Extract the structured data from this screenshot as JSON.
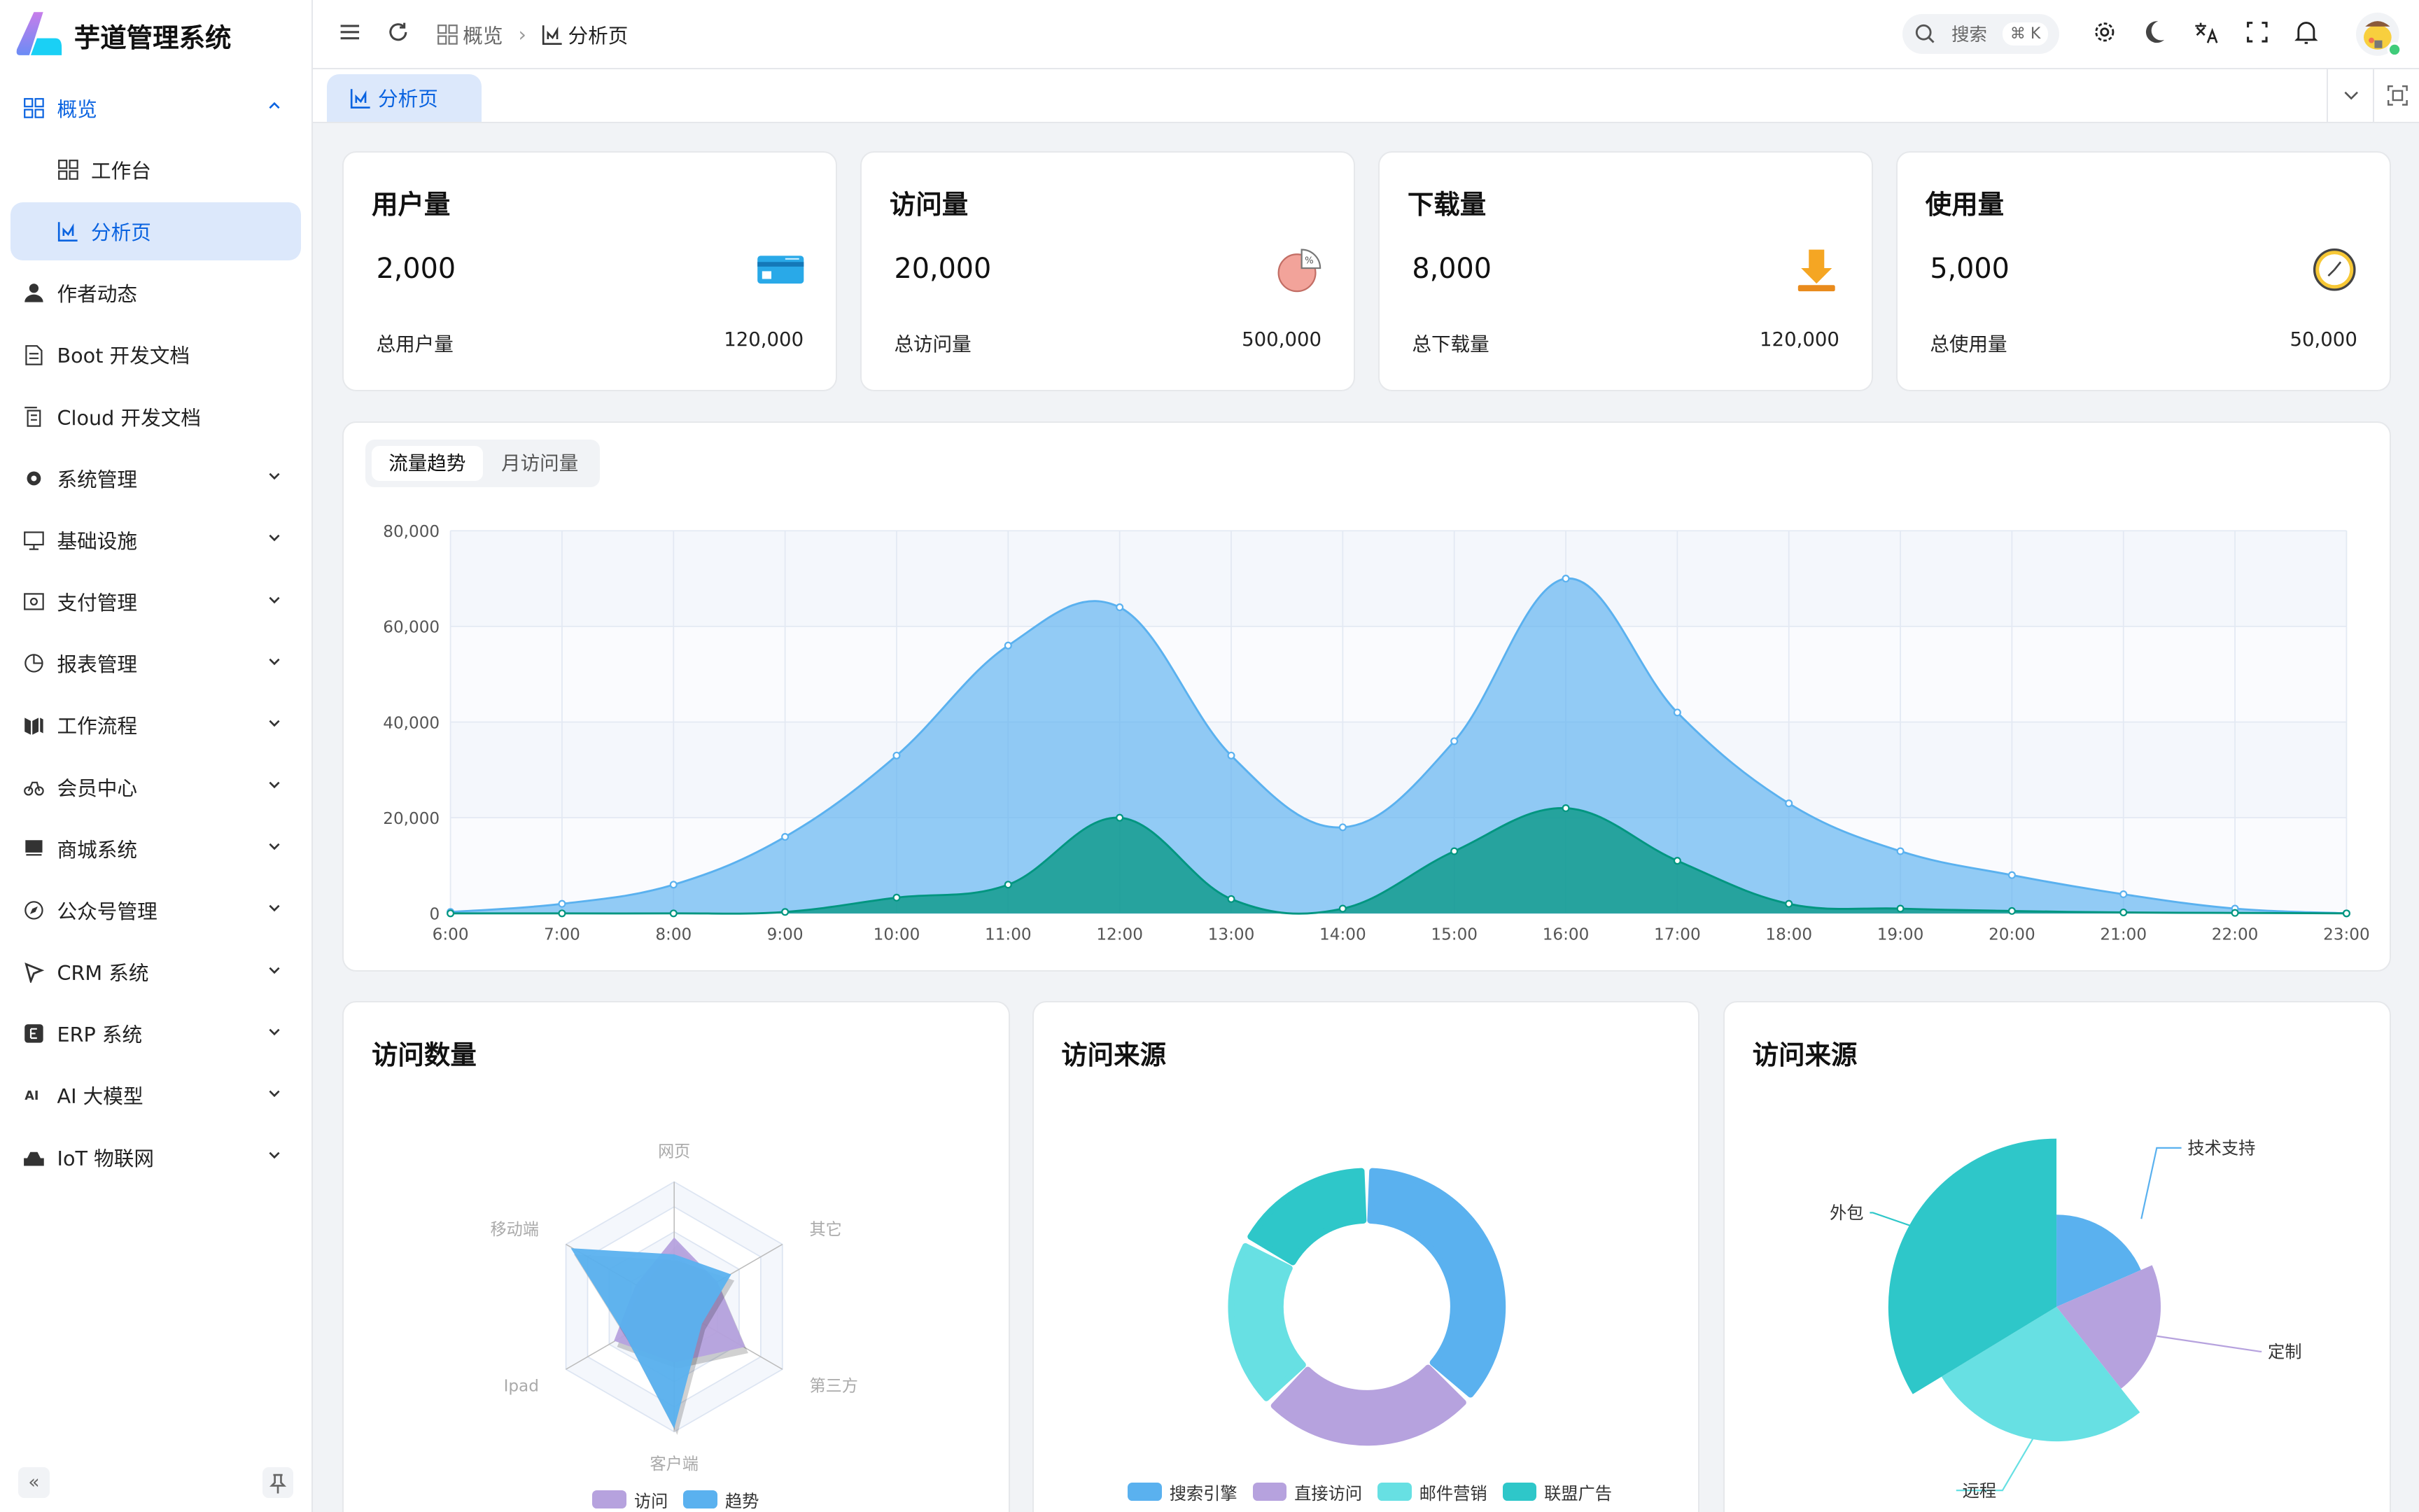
{
  "app": {
    "title": "芋道管理系统"
  },
  "sidebar": {
    "items": [
      {
        "label": "概览",
        "icon": "grid-icon",
        "state": "open"
      },
      {
        "label": "工作台",
        "icon": "grid-icon",
        "sub": true
      },
      {
        "label": "分析页",
        "icon": "chart-line-icon",
        "sub": true,
        "active": true
      },
      {
        "label": "作者动态",
        "icon": "user-icon"
      },
      {
        "label": "Boot 开发文档",
        "icon": "document-icon"
      },
      {
        "label": "Cloud 开发文档",
        "icon": "documents-icon"
      },
      {
        "label": "系统管理",
        "icon": "gear-icon",
        "expandable": true
      },
      {
        "label": "基础设施",
        "icon": "monitor-icon",
        "expandable": true
      },
      {
        "label": "支付管理",
        "icon": "payment-icon",
        "expandable": true
      },
      {
        "label": "报表管理",
        "icon": "pie-icon",
        "expandable": true
      },
      {
        "label": "工作流程",
        "icon": "workflow-icon",
        "expandable": true
      },
      {
        "label": "会员中心",
        "icon": "bicycle-icon",
        "expandable": true
      },
      {
        "label": "商城系统",
        "icon": "shop-icon",
        "expandable": true
      },
      {
        "label": "公众号管理",
        "icon": "compass-icon",
        "expandable": true
      },
      {
        "label": "CRM 系统",
        "icon": "crm-icon",
        "expandable": true
      },
      {
        "label": "ERP 系统",
        "icon": "erp-icon",
        "expandable": true
      },
      {
        "label": "AI 大模型",
        "icon": "ai-icon",
        "expandable": true
      },
      {
        "label": "IoT 物联网",
        "icon": "iot-icon",
        "expandable": true
      }
    ]
  },
  "header": {
    "breadcrumb": [
      {
        "label": "概览",
        "icon": "grid-icon"
      },
      {
        "label": "分析页",
        "icon": "chart-line-icon"
      }
    ],
    "search": {
      "placeholder": "搜索",
      "shortcut": "⌘ K"
    }
  },
  "tabs": [
    {
      "label": "分析页",
      "active": true
    }
  ],
  "stats": [
    {
      "title": "用户量",
      "value": "2,000",
      "footer_label": "总用户量",
      "footer_value": "120,000",
      "icon": "credit-card-icon"
    },
    {
      "title": "访问量",
      "value": "20,000",
      "footer_label": "总访问量",
      "footer_value": "500,000",
      "icon": "pie-chart-icon"
    },
    {
      "title": "下载量",
      "value": "8,000",
      "footer_label": "总下载量",
      "footer_value": "120,000",
      "icon": "download-icon"
    },
    {
      "title": "使用量",
      "value": "5,000",
      "footer_label": "总使用量",
      "footer_value": "50,000",
      "icon": "clock-icon"
    }
  ],
  "trend": {
    "tabs": [
      {
        "label": "流量趋势",
        "active": true
      },
      {
        "label": "月访问量"
      }
    ],
    "chart_data": {
      "type": "area",
      "x": [
        "6:00",
        "7:00",
        "8:00",
        "9:00",
        "10:00",
        "11:00",
        "12:00",
        "13:00",
        "14:00",
        "15:00",
        "16:00",
        "17:00",
        "18:00",
        "19:00",
        "20:00",
        "21:00",
        "22:00",
        "23:00"
      ],
      "ylim": [
        0,
        80000
      ],
      "yticks": [
        "0",
        "20,000",
        "40,000",
        "60,000",
        "80,000"
      ],
      "grid": true,
      "series": [
        {
          "values": [
            300,
            2000,
            6000,
            16000,
            33000,
            56000,
            64000,
            33000,
            18000,
            36000,
            70000,
            42000,
            23000,
            13000,
            8000,
            4000,
            1000,
            0
          ],
          "color": "#5ab1ef"
        },
        {
          "values": [
            0,
            0,
            0,
            300,
            3300,
            6000,
            20000,
            3000,
            1000,
            13000,
            22000,
            11000,
            2000,
            1000,
            500,
            200,
            100,
            0
          ],
          "color": "#019680"
        }
      ]
    }
  },
  "radar": {
    "title": "访问数量",
    "chart_data": {
      "type": "radar",
      "indicators": [
        "网页",
        "其它",
        "第三方",
        "客户端",
        "Ipad",
        "移动端"
      ],
      "max": 100,
      "series": [
        {
          "name": "访问",
          "values": [
            56,
            40,
            65,
            45,
            55,
            35
          ],
          "color": "#b6a2de"
        },
        {
          "name": "趋势",
          "values": [
            42,
            53,
            26,
            98,
            45,
            95
          ],
          "color": "#5ab1ef"
        }
      ],
      "legend": "bottom"
    }
  },
  "donut": {
    "title": "访问来源",
    "chart_data": {
      "type": "pie",
      "donut": true,
      "slices": [
        {
          "name": "搜索引擎",
          "value": 1048,
          "color": "#5ab1ef"
        },
        {
          "name": "直接访问",
          "value": 735,
          "color": "#b6a2de"
        },
        {
          "name": "邮件营销",
          "value": 580,
          "color": "#67e0e3"
        },
        {
          "name": "联盟广告",
          "value": 484,
          "color": "#2ec7c9"
        }
      ],
      "legend": "bottom"
    }
  },
  "rose": {
    "title": "访问来源",
    "chart_data": {
      "type": "pie",
      "rose": true,
      "slices": [
        {
          "name": "技术支持",
          "value": 274,
          "color": "#5ab1ef"
        },
        {
          "name": "定制",
          "value": 310,
          "color": "#b6a2de"
        },
        {
          "name": "远程",
          "value": 400,
          "color": "#67e0e3"
        },
        {
          "name": "外包",
          "value": 500,
          "color": "#2ec7c9"
        }
      ]
    }
  }
}
